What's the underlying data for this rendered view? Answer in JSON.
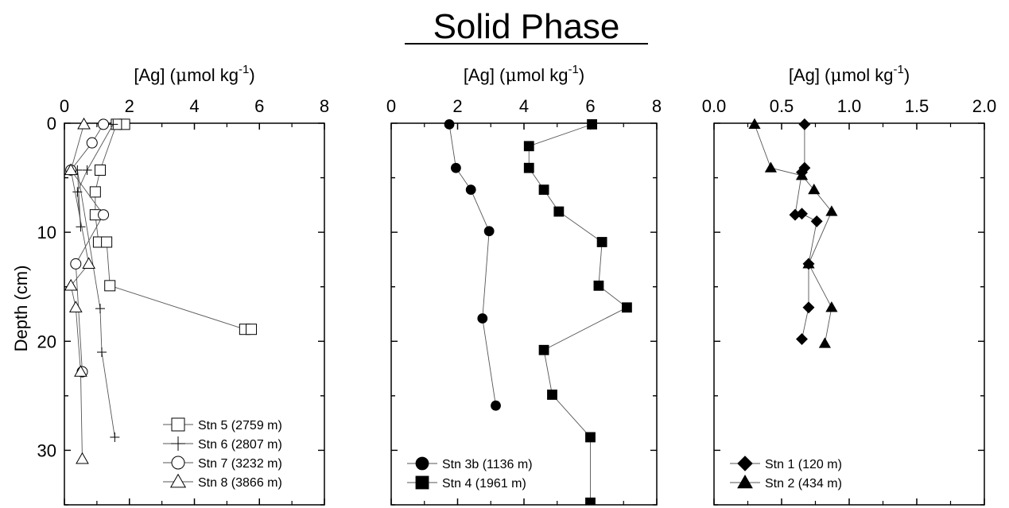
{
  "figure": {
    "title": "Solid Phase",
    "ylabel": "Depth (cm)"
  },
  "chart_data": [
    {
      "type": "line",
      "xlabel_main": "[Ag] (",
      "xlabel_mu": "μ",
      "xlabel_unit": "mol kg",
      "xlabel_exp": "-1",
      "xlabel_close": ")",
      "ylabel": "Depth (cm)",
      "xlim": [
        0,
        8
      ],
      "ylim": [
        0,
        35
      ],
      "xticks": [
        0,
        2,
        4,
        6,
        8
      ],
      "xtick_labels": [
        "0",
        "2",
        "4",
        "6",
        "8"
      ],
      "yticks": [
        0,
        10,
        20,
        30
      ],
      "ytick_labels": [
        "0",
        "10",
        "20",
        "30"
      ],
      "grid": false,
      "legend_position": "bottom-right",
      "series": [
        {
          "name": "Stn 5 (2759 m)",
          "marker": "square-open",
          "x": [
            1.85,
            1.6,
            1.1,
            0.95,
            0.95,
            1.05,
            1.3,
            1.4,
            5.55,
            5.75
          ],
          "y": [
            0.1,
            0.1,
            4.3,
            6.3,
            8.4,
            10.9,
            10.9,
            14.9,
            18.9,
            18.9
          ]
        },
        {
          "name": "Stn 6 (2807 m)",
          "marker": "plus",
          "x": [
            1.5,
            0.7,
            0.4,
            0.5,
            0.4,
            1.1,
            1.15,
            1.55
          ],
          "y": [
            0.1,
            4.3,
            6.3,
            9.5,
            4.3,
            17.0,
            21.0,
            28.8
          ]
        },
        {
          "name": "Stn 7 (3232 m)",
          "marker": "circle-open",
          "x": [
            1.2,
            0.85,
            0.2,
            1.2,
            0.35,
            0.55
          ],
          "y": [
            0.1,
            1.8,
            4.3,
            8.4,
            12.9,
            22.8
          ]
        },
        {
          "name": "Stn 8 (3866 m)",
          "marker": "triangle-open",
          "x": [
            0.6,
            0.2,
            0.75,
            0.2,
            0.35,
            0.5,
            0.55
          ],
          "y": [
            0.1,
            4.3,
            12.9,
            14.9,
            16.9,
            22.8,
            30.8
          ]
        }
      ]
    },
    {
      "type": "line",
      "xlabel_main": "[Ag] (",
      "xlabel_mu": "μ",
      "xlabel_unit": "mol kg",
      "xlabel_exp": "-1",
      "xlabel_close": ")",
      "xlim": [
        0,
        8
      ],
      "ylim": [
        0,
        35
      ],
      "xticks": [
        0,
        2,
        4,
        6,
        8
      ],
      "xtick_labels": [
        "0",
        "2",
        "4",
        "6",
        "8"
      ],
      "yticks": [
        0,
        10,
        20,
        30
      ],
      "grid": false,
      "legend_position": "bottom-left",
      "series": [
        {
          "name": "Stn 3b (1136 m)",
          "marker": "circle-filled",
          "x": [
            1.75,
            1.95,
            2.4,
            2.95,
            2.75,
            3.15
          ],
          "y": [
            0.1,
            4.1,
            6.1,
            9.9,
            17.9,
            25.9
          ]
        },
        {
          "name": "Stn 4 (1961 m)",
          "marker": "square-filled",
          "x": [
            6.05,
            4.15,
            4.15,
            4.6,
            5.05,
            6.35,
            6.25,
            7.1,
            4.6,
            4.85,
            6.0,
            6.0
          ],
          "y": [
            0.1,
            2.1,
            4.1,
            6.1,
            8.1,
            10.9,
            14.9,
            16.9,
            20.8,
            24.9,
            28.8,
            34.8
          ]
        }
      ]
    },
    {
      "type": "line",
      "xlabel_main": "[Ag] (",
      "xlabel_mu": "μ",
      "xlabel_unit": "mol kg",
      "xlabel_exp": "-1",
      "xlabel_close": ")",
      "xlim": [
        0,
        2
      ],
      "ylim": [
        0,
        35
      ],
      "xticks": [
        0,
        0.5,
        1.0,
        1.5,
        2.0
      ],
      "xtick_labels": [
        "0.0",
        "0.5",
        "1.0",
        "1.5",
        "2.0"
      ],
      "yticks": [
        0,
        10,
        20,
        30
      ],
      "grid": false,
      "legend_position": "bottom-left",
      "series": [
        {
          "name": "Stn 1 (120 m)",
          "marker": "diamond-filled",
          "x": [
            0.67,
            0.67,
            0.65,
            0.6,
            0.65,
            0.76,
            0.7,
            0.7,
            0.65
          ],
          "y": [
            0.1,
            4.1,
            4.5,
            8.4,
            8.3,
            9.0,
            12.9,
            16.9,
            19.8
          ]
        },
        {
          "name": "Stn 2 (434 m)",
          "marker": "triangle-filled",
          "x": [
            0.3,
            0.42,
            0.65,
            0.74,
            0.87,
            0.7,
            0.87,
            0.82
          ],
          "y": [
            0.1,
            4.1,
            4.8,
            6.1,
            8.1,
            12.9,
            16.9,
            20.2
          ]
        }
      ]
    }
  ]
}
